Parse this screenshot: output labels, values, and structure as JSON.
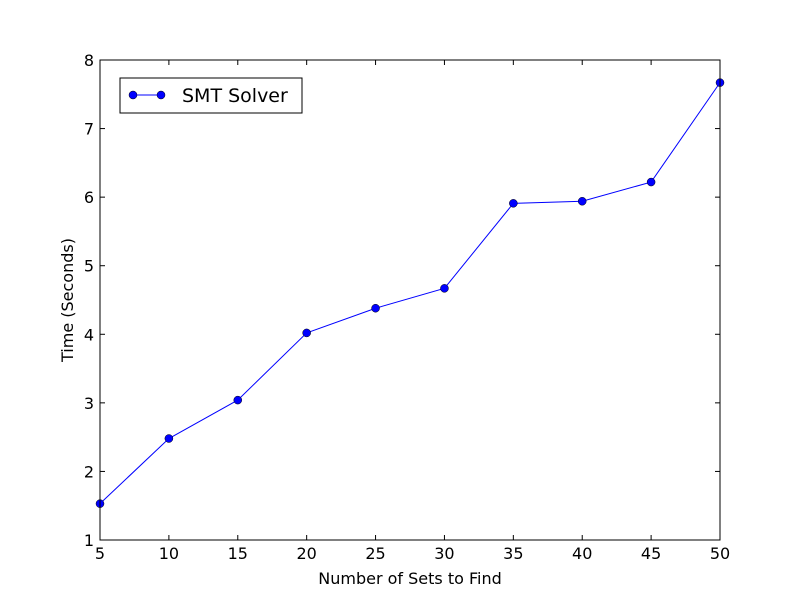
{
  "chart_data": {
    "type": "line",
    "title": "",
    "xlabel": "Number of Sets to Find",
    "ylabel": "Time (Seconds)",
    "xlim": [
      5,
      50
    ],
    "ylim": [
      1,
      8
    ],
    "xticks": [
      5,
      10,
      15,
      20,
      25,
      30,
      35,
      40,
      45,
      50
    ],
    "yticks": [
      1,
      2,
      3,
      4,
      5,
      6,
      7,
      8
    ],
    "grid": false,
    "legend_position": "top-left",
    "series": [
      {
        "name": "SMT Solver",
        "color": "#0000ff",
        "marker": "circle",
        "x": [
          5,
          10,
          15,
          20,
          25,
          30,
          35,
          40,
          45,
          50
        ],
        "y": [
          1.53,
          2.48,
          3.04,
          4.02,
          4.38,
          4.67,
          5.91,
          5.94,
          6.22,
          7.67
        ]
      }
    ]
  }
}
